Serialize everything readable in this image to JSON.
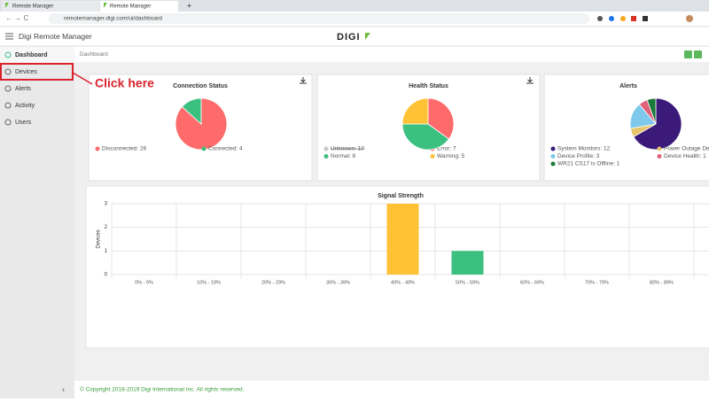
{
  "browser": {
    "tabs": [
      "Remote Manager",
      "Remote Manager"
    ],
    "url": "remotemanager.digi.com/ui/dashboard"
  },
  "header": {
    "app_title": "Digi Remote Manager",
    "logo": "DIGI"
  },
  "sidebar": {
    "items": [
      "Dashboard",
      "Devices",
      "Alerts",
      "Activity",
      "Users"
    ]
  },
  "breadcrumb": "Dashboard",
  "annotation": "Click here",
  "footer": "© Copyright 2018-2019 Digi International Inc. All rights reserved.",
  "chart_data": [
    {
      "type": "pie",
      "title": "Connection Status",
      "labels": [
        "Disconnected: 26",
        "Connected: 4"
      ],
      "values": [
        26,
        4
      ],
      "colors": [
        "#ff6b6b",
        "#3cc07f"
      ]
    },
    {
      "type": "pie",
      "title": "Health Status",
      "labels": [
        "Unknown: 10",
        "Error: 7",
        "Normal: 8",
        "Warning: 5"
      ],
      "values": [
        10,
        7,
        8,
        5
      ],
      "colors": [
        "#c8c8c8",
        "#ff6b6b",
        "#3cc07f",
        "#ffc234"
      ],
      "hidden": [
        true,
        false,
        false,
        false
      ]
    },
    {
      "type": "pie",
      "title": "Alerts",
      "labels": [
        "System Monitors: 12",
        "Power Outage Dete",
        "Device Profile: 3",
        "Device Health: 1",
        "WR21 CS17 is Offline: 1"
      ],
      "values": [
        12,
        1,
        3,
        1,
        1
      ],
      "colors": [
        "#3b1a7a",
        "#e8c56a",
        "#7ec8ec",
        "#e0607a",
        "#1a7a3a"
      ]
    },
    {
      "type": "bar",
      "title": "Signal Strength",
      "ylabel": "Devices",
      "categories": [
        "0% - 9%",
        "10% - 19%",
        "20% - 29%",
        "30% - 39%",
        "40% - 49%",
        "50% - 59%",
        "60% - 69%",
        "70% - 79%",
        "80% - 89%"
      ],
      "values": [
        0,
        0,
        0,
        0,
        3,
        1,
        0,
        0,
        0
      ],
      "colors": [
        null,
        null,
        null,
        null,
        "#ffc234",
        "#3cc07f",
        null,
        null,
        null
      ],
      "ylim": [
        0,
        3
      ],
      "yticks": [
        0,
        1,
        2,
        3
      ],
      "grid": true
    }
  ]
}
